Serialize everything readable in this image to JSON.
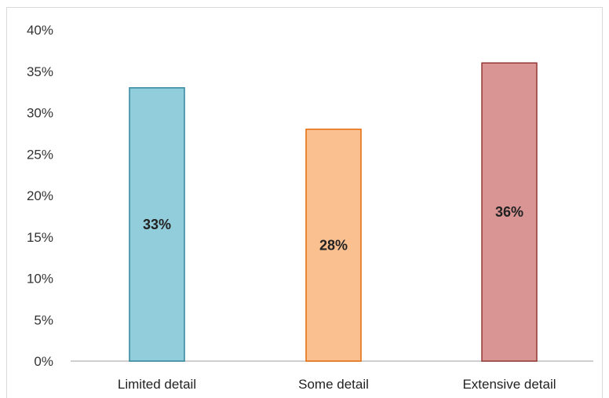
{
  "chart_data": {
    "type": "bar",
    "categories": [
      "Limited detail",
      "Some detail",
      "Extensive detail"
    ],
    "values": [
      33,
      28,
      36
    ],
    "data_labels": [
      "33%",
      "28%",
      "36%"
    ],
    "y_ticks": [
      "0%",
      "5%",
      "10%",
      "15%",
      "20%",
      "25%",
      "30%",
      "35%",
      "40%"
    ],
    "ylim": [
      0,
      40
    ],
    "grid": false,
    "legend": "none",
    "colors": {
      "fills": [
        "#92cddc",
        "#fac090",
        "#d99594"
      ],
      "strokes": [
        "#31859c",
        "#e36c09",
        "#943634"
      ]
    }
  }
}
